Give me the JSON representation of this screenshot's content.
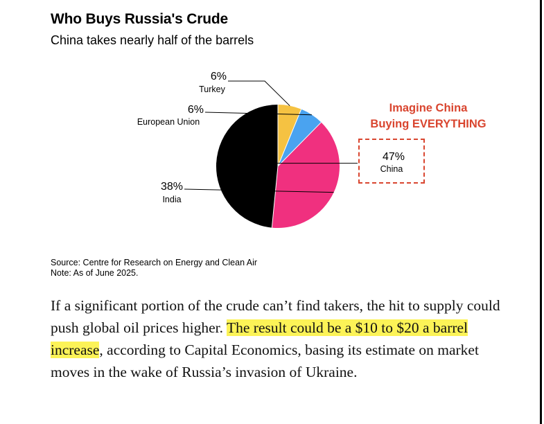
{
  "header": {
    "title": "Who Buys Russia's Crude",
    "subtitle": "China takes nearly half of the barrels"
  },
  "chart_data": {
    "type": "pie",
    "title": "Who Buys Russia's Crude",
    "subtitle": "China takes nearly half of the barrels",
    "slices": [
      {
        "label": "China",
        "value": 47,
        "value_label": "47%",
        "color": "#000000"
      },
      {
        "label": "India",
        "value": 38,
        "value_label": "38%",
        "color": "#f0307f"
      },
      {
        "label": "European Union",
        "value": 6,
        "value_label": "6%",
        "color": "#4aa3f0"
      },
      {
        "label": "Turkey",
        "value": 6,
        "value_label": "6%",
        "color": "#f5c242"
      }
    ],
    "start_angle_deg": 0,
    "direction": "counterclockwise"
  },
  "annotation": {
    "line1": "Imagine China",
    "line2": "Buying EVERYTHING",
    "color": "#d9452f"
  },
  "source": {
    "line1": "Source: Centre for Research on Energy and Clean Air",
    "line2": "Note: As of June 2025."
  },
  "article": {
    "part1": "If a significant portion of the crude can’t find takers, the hit to supply could push global oil prices higher. ",
    "highlight": "The result could be a $10 to $20 a barrel increase",
    "part2": ", according to Capital Economics, basing its estimate on market moves in the wake of Russia’s invasion of Ukraine.",
    "highlight_color": "#fcf357"
  }
}
